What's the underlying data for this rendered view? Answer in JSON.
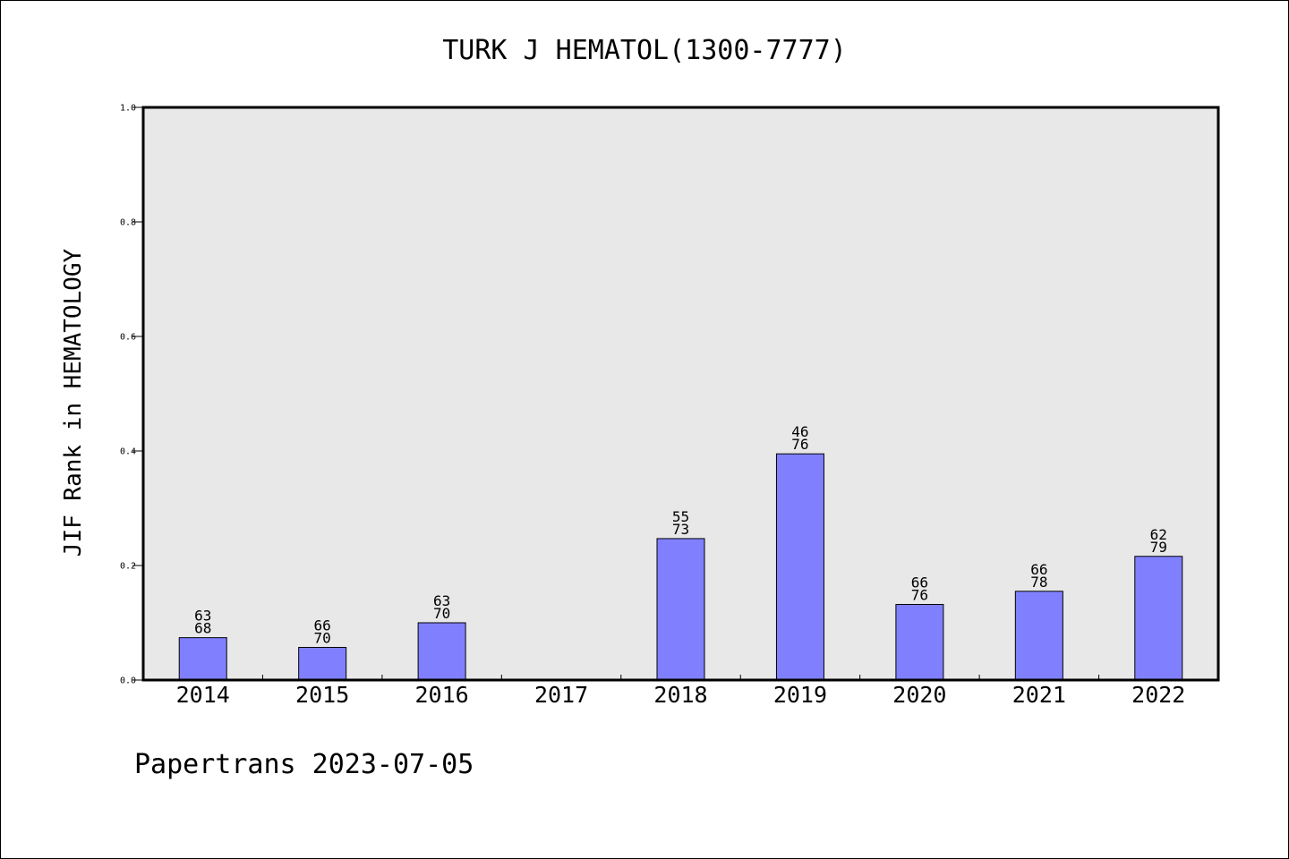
{
  "chart_data": {
    "type": "bar",
    "title": "TURK J HEMATOL(1300-7777)",
    "xlabel": "",
    "ylabel": "JIF Rank in HEMATOLOGY",
    "ylim": [
      0,
      1.0
    ],
    "yticks": [
      "0.0",
      "0.2",
      "0.4",
      "0.6",
      "0.8",
      "1.0"
    ],
    "categories": [
      "2014",
      "2015",
      "2016",
      "2017",
      "2018",
      "2019",
      "2020",
      "2021",
      "2022"
    ],
    "values": [
      0.074,
      0.057,
      0.1,
      null,
      0.247,
      0.395,
      0.132,
      0.155,
      0.216
    ],
    "labels": [
      {
        "rank": "63",
        "total": "68"
      },
      {
        "rank": "66",
        "total": "70"
      },
      {
        "rank": "63",
        "total": "70"
      },
      null,
      {
        "rank": "55",
        "total": "73"
      },
      {
        "rank": "46",
        "total": "76"
      },
      {
        "rank": "66",
        "total": "76"
      },
      {
        "rank": "66",
        "total": "78"
      },
      {
        "rank": "62",
        "total": "79"
      }
    ],
    "grid": false,
    "colors": {
      "bar": "#8080ff",
      "plot_bg": "#e8e8e8"
    }
  },
  "footer": "Papertrans 2023-07-05"
}
